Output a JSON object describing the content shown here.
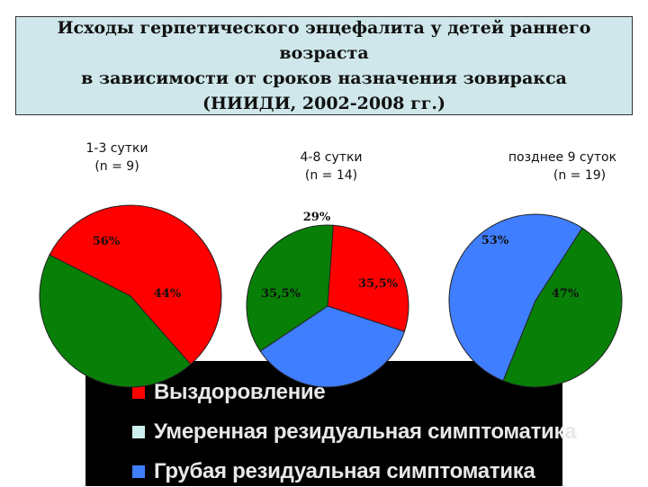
{
  "title": {
    "line1": "Исходы герпетического энцефалита у детей раннего возраста",
    "line2": "в зависимости от сроков назначения зовиракса",
    "line3": "(НИИДИ, 2002-2008 гг.)"
  },
  "colors": {
    "recovery": "#ff0000",
    "moderate": "#cceeee",
    "severe": "#3f7eff",
    "green": "#088008"
  },
  "legend": [
    {
      "label": "Выздоровление",
      "color": "#ff0000"
    },
    {
      "label": "Умеренная резидуальная симптоматика",
      "color": "#cceeee"
    },
    {
      "label": "Грубая резидуальная симптоматика",
      "color": "#3f7eff"
    }
  ],
  "chart_data": [
    {
      "type": "pie",
      "caption_line1": "1-3 сутки",
      "caption_line2": "(n = 9)",
      "slices": [
        {
          "label": "56%",
          "value": 56,
          "color": "#ff0000"
        },
        {
          "label": "44%",
          "value": 44,
          "color": "#088008"
        }
      ]
    },
    {
      "type": "pie",
      "caption_line1": "4-8 сутки",
      "caption_line2": "(n = 14)",
      "slices": [
        {
          "label": "29%",
          "value": 29,
          "color": "#ff0000"
        },
        {
          "label": "35,5%",
          "value": 35.5,
          "color": "#3f7eff"
        },
        {
          "label": "35,5%",
          "value": 35.5,
          "color": "#088008"
        }
      ]
    },
    {
      "type": "pie",
      "caption_line1": "позднее 9 суток",
      "caption_line2": "(n = 19)",
      "slices": [
        {
          "label": "47%",
          "value": 47,
          "color": "#088008"
        },
        {
          "label": "53%",
          "value": 53,
          "color": "#3f7eff"
        }
      ]
    }
  ]
}
